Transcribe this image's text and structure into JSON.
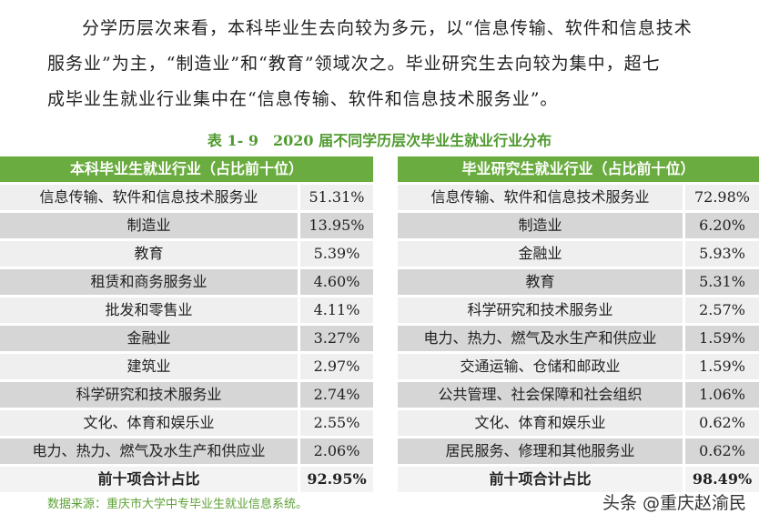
{
  "paragraph": [
    "分学历层次来看，本科毕业生去向较为多元，以“信息传输、软件和信息技术",
    "服务业”为主，“制造业”和“教育”领域次之。毕业研究生去向较为集中，超七",
    "成毕业生就业行业集中在“信息传输、软件和信息技术服务业”。"
  ],
  "table_title": "表 1- 9　2020 届不同学历层次毕业生就业行业分布",
  "undergrad": {
    "header": "本科毕业生就业行业（占比前十位）",
    "rows": [
      {
        "name": "信息传输、软件和信息技术服务业",
        "pct": "51.31%"
      },
      {
        "name": "制造业",
        "pct": "13.95%"
      },
      {
        "name": "教育",
        "pct": "5.39%"
      },
      {
        "name": "租赁和商务服务业",
        "pct": "4.60%"
      },
      {
        "name": "批发和零售业",
        "pct": "4.11%"
      },
      {
        "name": "金融业",
        "pct": "3.27%"
      },
      {
        "name": "建筑业",
        "pct": "2.97%"
      },
      {
        "name": "科学研究和技术服务业",
        "pct": "2.74%"
      },
      {
        "name": "文化、体育和娱乐业",
        "pct": "2.55%"
      },
      {
        "name": "电力、热力、燃气及水生产和供应业",
        "pct": "2.06%"
      }
    ],
    "total": {
      "name": "前十项合计占比",
      "pct": "92.95%"
    }
  },
  "graduate": {
    "header": "毕业研究生就业行业（占比前十位）",
    "rows": [
      {
        "name": "信息传输、软件和信息技术服务业",
        "pct": "72.98%"
      },
      {
        "name": "制造业",
        "pct": "6.20%"
      },
      {
        "name": "金融业",
        "pct": "5.93%"
      },
      {
        "name": "教育",
        "pct": "5.31%"
      },
      {
        "name": "科学研究和技术服务业",
        "pct": "2.57%"
      },
      {
        "name": "电力、热力、燃气及水生产和供应业",
        "pct": "1.59%"
      },
      {
        "name": "交通运输、仓储和邮政业",
        "pct": "1.59%"
      },
      {
        "name": "公共管理、社会保障和社会组织",
        "pct": "1.06%"
      },
      {
        "name": "文化、体育和娱乐业",
        "pct": "0.62%"
      },
      {
        "name": "居民服务、修理和其他服务业",
        "pct": "0.62%"
      }
    ],
    "total": {
      "name": "前十项合计占比",
      "pct": "98.49%"
    }
  },
  "source": "数据来源：重庆市大学中专毕业生就业信息系统。",
  "watermark": "头条 @重庆赵渝民"
}
